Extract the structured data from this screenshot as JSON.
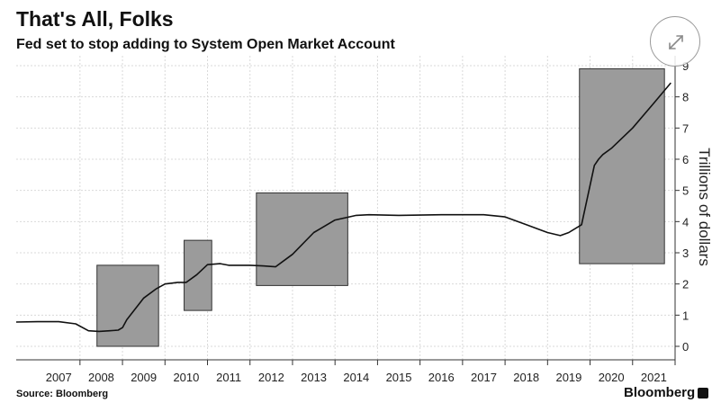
{
  "header": {
    "title": "That's All, Folks",
    "subtitle": "Fed set to stop adding to System Open Market Account"
  },
  "footer": {
    "source": "Source: Bloomberg",
    "brand": "Bloomberg"
  },
  "controls": {
    "expand_icon": "expand-icon"
  },
  "colors": {
    "line": "#111111",
    "highlight": "#9b9b9b",
    "grid": "#d9d9d9"
  },
  "chart_data": {
    "type": "line",
    "title": "That's All, Folks",
    "subtitle": "Fed set to stop adding to System Open Market Account",
    "ylabel": "Trillions of dollars",
    "y_axis_position": "right",
    "ylim": [
      0,
      9
    ],
    "yticks": [
      "0",
      "1",
      "2",
      "3",
      "4",
      "5",
      "6",
      "7",
      "8",
      "9"
    ],
    "xlim": [
      2006.5,
      2022.0
    ],
    "xtick_labels": [
      "2007",
      "2008",
      "2009",
      "2010",
      "2011",
      "2012",
      "2013",
      "2014",
      "2015",
      "2016",
      "2017",
      "2018",
      "2019",
      "2020",
      "2021"
    ],
    "grid": true,
    "series": [
      {
        "x": [
          2006.5,
          2007.0,
          2007.5,
          2007.9,
          2008.2,
          2008.45,
          2008.7,
          2008.9,
          2009.0,
          2009.1,
          2009.5,
          2009.8,
          2010.0,
          2010.3,
          2010.5,
          2010.75,
          2011.0,
          2011.3,
          2011.5,
          2012.0,
          2012.3,
          2012.6,
          2012.8,
          2013.0,
          2013.5,
          2014.0,
          2014.5,
          2014.8,
          2015.5,
          2016.5,
          2017.5,
          2018.0,
          2018.5,
          2019.0,
          2019.3,
          2019.5,
          2019.8,
          2020.1,
          2020.2,
          2020.3,
          2020.5,
          2021.0,
          2021.5,
          2021.9
        ],
        "y": [
          0.78,
          0.79,
          0.79,
          0.72,
          0.5,
          0.48,
          0.5,
          0.52,
          0.6,
          0.85,
          1.55,
          1.85,
          2.0,
          2.05,
          2.05,
          2.3,
          2.62,
          2.65,
          2.6,
          2.6,
          2.58,
          2.55,
          2.75,
          2.95,
          3.65,
          4.05,
          4.2,
          4.22,
          4.2,
          4.22,
          4.22,
          4.15,
          3.9,
          3.65,
          3.55,
          3.65,
          3.9,
          5.8,
          6.0,
          6.15,
          6.35,
          7.0,
          7.8,
          8.45
        ]
      }
    ],
    "highlight_regions": [
      {
        "x0": 2008.4,
        "x1": 2009.85,
        "y0": 0.0,
        "y1": 2.6
      },
      {
        "x0": 2010.45,
        "x1": 2011.1,
        "y0": 1.15,
        "y1": 3.4
      },
      {
        "x0": 2012.15,
        "x1": 2014.3,
        "y0": 1.95,
        "y1": 4.92
      },
      {
        "x0": 2019.75,
        "x1": 2021.75,
        "y0": 2.65,
        "y1": 8.9
      }
    ]
  }
}
